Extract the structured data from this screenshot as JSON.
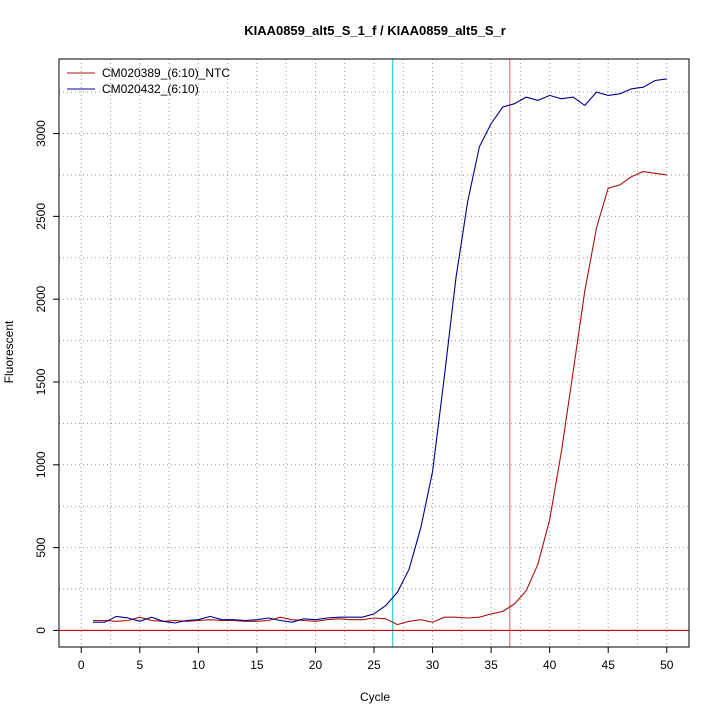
{
  "chart_data": {
    "type": "line",
    "title": "KIAA0859_alt5_S_1_f / KIAA0859_alt5_S_r",
    "xlabel": "Cycle",
    "ylabel": "Fluorescent",
    "xlim": [
      -1.9,
      51.9
    ],
    "ylim": [
      -100,
      3450
    ],
    "xticks": [
      0,
      5,
      10,
      15,
      20,
      25,
      30,
      35,
      40,
      45,
      50
    ],
    "yticks": [
      0,
      500,
      1000,
      1500,
      2000,
      2500,
      3000
    ],
    "grid": true,
    "legend_position": "top-left",
    "threshold_y": 0,
    "vlines": [
      {
        "x": 26.6,
        "color": "#00cccc"
      },
      {
        "x": 36.6,
        "color": "#cc6666"
      }
    ],
    "x": [
      1,
      2,
      3,
      4,
      5,
      6,
      7,
      8,
      9,
      10,
      11,
      12,
      13,
      14,
      15,
      16,
      17,
      18,
      19,
      20,
      21,
      22,
      23,
      24,
      25,
      26,
      27,
      28,
      29,
      30,
      31,
      32,
      33,
      34,
      35,
      36,
      37,
      38,
      39,
      40,
      41,
      42,
      43,
      44,
      45,
      46,
      47,
      48,
      49,
      50
    ],
    "series": [
      {
        "name": "CM020389_(6:10)_NTC",
        "color": "#aa1111",
        "values": [
          60,
          60,
          55,
          60,
          80,
          60,
          55,
          60,
          55,
          60,
          65,
          60,
          60,
          55,
          55,
          60,
          80,
          65,
          60,
          55,
          65,
          70,
          65,
          65,
          75,
          70,
          35,
          55,
          65,
          50,
          80,
          80,
          75,
          80,
          100,
          115,
          160,
          240,
          400,
          670,
          1080,
          1560,
          2050,
          2430,
          2670,
          2690,
          2740,
          2770,
          2760,
          2750
        ]
      },
      {
        "name": "CM020432_(6:10)",
        "color": "#000088",
        "values": [
          50,
          50,
          85,
          75,
          55,
          80,
          55,
          45,
          60,
          65,
          85,
          65,
          65,
          60,
          65,
          75,
          60,
          50,
          70,
          65,
          75,
          80,
          80,
          80,
          100,
          150,
          230,
          370,
          620,
          960,
          1530,
          2130,
          2590,
          2920,
          3060,
          3160,
          3180,
          3220,
          3200,
          3230,
          3210,
          3220,
          3170,
          3250,
          3230,
          3240,
          3270,
          3280,
          3320,
          3330
        ]
      }
    ]
  }
}
